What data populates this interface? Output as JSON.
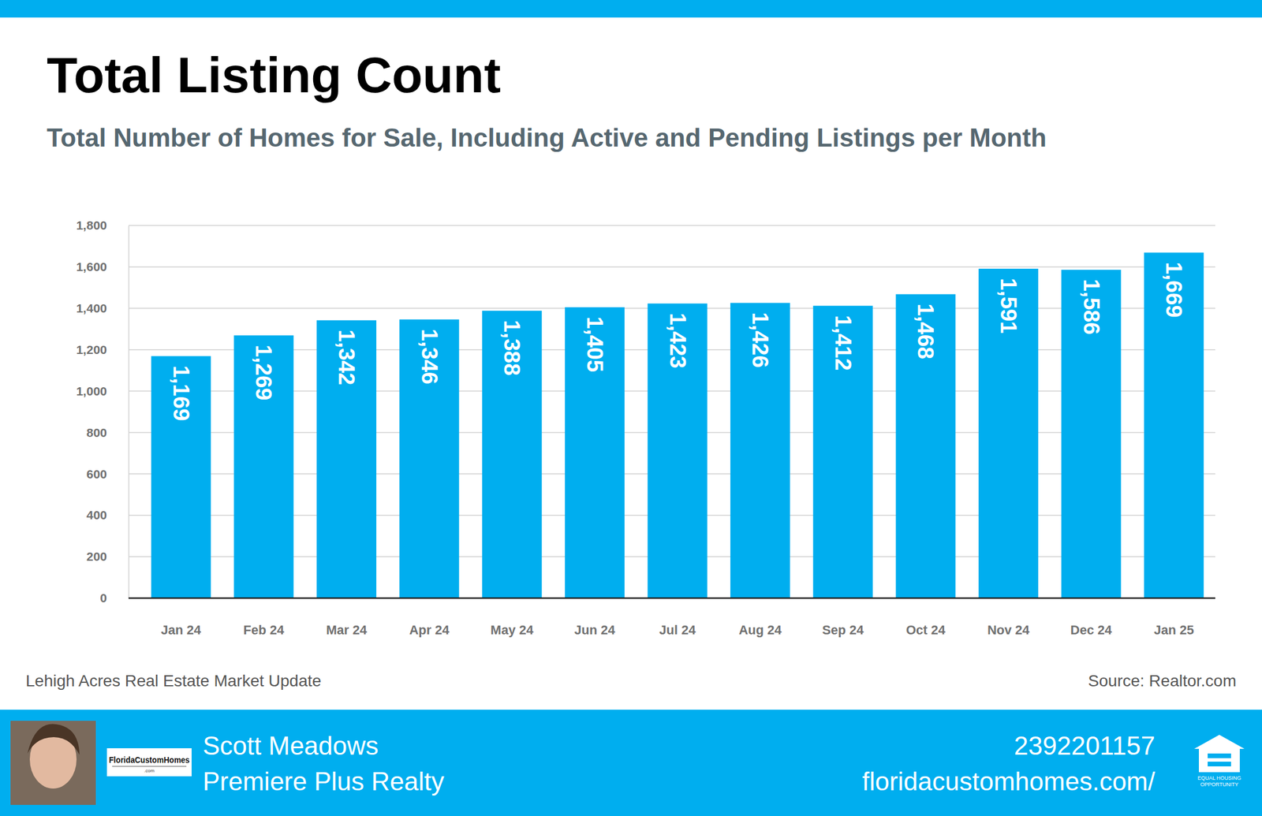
{
  "chart_data": {
    "type": "bar",
    "title": "Total Listing Count",
    "subtitle": "Total Number of Homes for Sale, Including Active and Pending Listings per Month",
    "categories": [
      "Jan 24",
      "Feb 24",
      "Mar 24",
      "Apr 24",
      "May 24",
      "Jun 24",
      "Jul 24",
      "Aug 24",
      "Sep 24",
      "Oct 24",
      "Nov 24",
      "Dec 24",
      "Jan 25"
    ],
    "values": [
      1169,
      1269,
      1342,
      1346,
      1388,
      1405,
      1423,
      1426,
      1412,
      1468,
      1591,
      1586,
      1669
    ],
    "value_labels": [
      "1,169",
      "1,269",
      "1,342",
      "1,346",
      "1,388",
      "1,405",
      "1,423",
      "1,426",
      "1,412",
      "1,468",
      "1,591",
      "1,586",
      "1,669"
    ],
    "color": "#00aeef",
    "ylim": [
      0,
      1800
    ],
    "yticks": [
      0,
      200,
      400,
      600,
      800,
      {
        "value": 1000,
        "label": "1,000"
      },
      {
        "value": 1200,
        "label": "1,200"
      },
      {
        "value": 1400,
        "label": "1,400"
      },
      {
        "value": 1600,
        "label": "1,600"
      },
      {
        "value": 1800,
        "label": "1,800"
      }
    ],
    "grid": true,
    "data_labels": true
  },
  "footer": {
    "caption": "Lehigh Acres Real Estate Market Update",
    "source": "Source: Realtor.com",
    "agent_name": "Scott Meadows",
    "brokerage": "Premiere Plus Realty",
    "phone": "2392201157",
    "website": "floridacustomhomes.com/",
    "logo_text": "FloridaCustomHomes",
    "logo_subtext": ".com",
    "badge_text": "EQUAL HOUSING OPPORTUNITY"
  }
}
